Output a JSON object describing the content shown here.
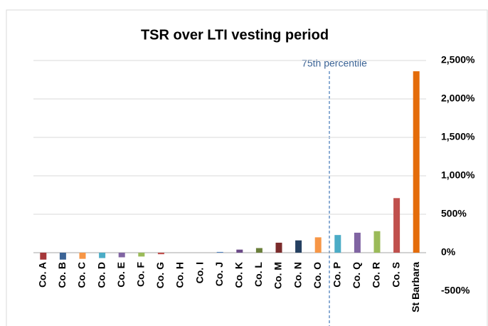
{
  "chart_data": {
    "type": "bar",
    "title": "TSR over LTI vesting period",
    "annotation": "75th percentile",
    "categories": [
      "Co. A",
      "Co. B",
      "Co. C",
      "Co. D",
      "Co. E",
      "Co. F",
      "Co. G",
      "Co. H",
      "Co. I",
      "Co. J",
      "Co. K",
      "Co. L",
      "Co. M",
      "Co. N",
      "Co. O",
      "Co. P",
      "Co. Q",
      "Co. R",
      "Co. S",
      "St Barbara"
    ],
    "values": [
      -90,
      -90,
      -80,
      -70,
      -60,
      -50,
      -20,
      0,
      0,
      10,
      40,
      60,
      130,
      160,
      200,
      230,
      260,
      280,
      710,
      2360
    ],
    "colors": [
      "#a5373a",
      "#3c6496",
      "#f79646",
      "#4bacc6",
      "#8064a2",
      "#9bbb59",
      "#c0504d",
      "#4f81bd",
      "#f79646",
      "#4f81bd",
      "#6b4a88",
      "#6a7f3b",
      "#7b2c2c",
      "#254061",
      "#f79646",
      "#4bacc6",
      "#8064a2",
      "#9bbb59",
      "#c0504d",
      "#e46c0a"
    ],
    "ylim": [
      -500,
      2500
    ],
    "yticks": [
      {
        "value": -500,
        "label": "-500%"
      },
      {
        "value": 0,
        "label": "0%"
      },
      {
        "value": 500,
        "label": "500%"
      },
      {
        "value": 1000,
        "label": "1,000%"
      },
      {
        "value": 1500,
        "label": "1,500%"
      },
      {
        "value": 2000,
        "label": "2,000%"
      },
      {
        "value": 2500,
        "label": "2,500%"
      }
    ],
    "grid": true
  }
}
